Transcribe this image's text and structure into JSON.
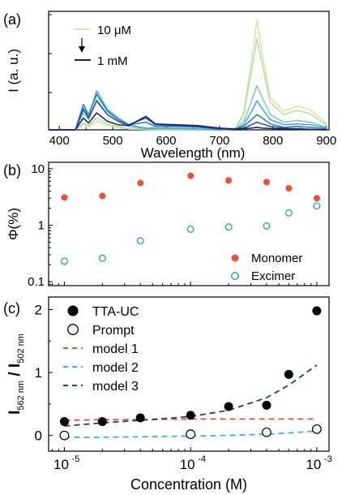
{
  "chart_data": [
    {
      "panel": "(a)",
      "type": "line",
      "xlabel": "Wavelength (nm)",
      "ylabel": "I (a. u.)",
      "xlim": [
        380,
        905
      ],
      "x_ticks": [
        "400",
        "500",
        "600",
        "700",
        "800",
        "900"
      ],
      "legend": {
        "position": "top-left",
        "top_label": "10 μM",
        "bottom_label": "1 mM",
        "arrow": "down"
      },
      "grid": false,
      "series": [
        {
          "color": "#cfe8a2",
          "values": [
            [
              380,
              0
            ],
            [
              430,
              0
            ],
            [
              445,
              6
            ],
            [
              455,
              4
            ],
            [
              470,
              10
            ],
            [
              490,
              5
            ],
            [
              510,
              3
            ],
            [
              530,
              1
            ],
            [
              600,
              0
            ],
            [
              700,
              0
            ],
            [
              730,
              2
            ],
            [
              745,
              20
            ],
            [
              760,
              82
            ],
            [
              770,
              130
            ],
            [
              780,
              90
            ],
            [
              795,
              38
            ],
            [
              820,
              22
            ],
            [
              845,
              28
            ],
            [
              870,
              24
            ],
            [
              900,
              8
            ]
          ]
        },
        {
          "color": "#b5dd9c",
          "values": [
            [
              380,
              0
            ],
            [
              430,
              0
            ],
            [
              445,
              8
            ],
            [
              455,
              5
            ],
            [
              470,
              14
            ],
            [
              490,
              7
            ],
            [
              510,
              4
            ],
            [
              530,
              1
            ],
            [
              600,
              0
            ],
            [
              700,
              0
            ],
            [
              730,
              2
            ],
            [
              745,
              18
            ],
            [
              760,
              70
            ],
            [
              770,
              108
            ],
            [
              780,
              78
            ],
            [
              795,
              32
            ],
            [
              820,
              18
            ],
            [
              845,
              23
            ],
            [
              870,
              19
            ],
            [
              900,
              6
            ]
          ]
        },
        {
          "color": "#7fc8b8",
          "values": [
            [
              380,
              0
            ],
            [
              430,
              0
            ],
            [
              445,
              20
            ],
            [
              455,
              12
            ],
            [
              470,
              36
            ],
            [
              490,
              18
            ],
            [
              510,
              10
            ],
            [
              530,
              4
            ],
            [
              560,
              1
            ],
            [
              600,
              1
            ],
            [
              700,
              0
            ],
            [
              730,
              1
            ],
            [
              745,
              10
            ],
            [
              760,
              34
            ],
            [
              770,
              52
            ],
            [
              780,
              38
            ],
            [
              795,
              18
            ],
            [
              820,
              9
            ],
            [
              845,
              11
            ],
            [
              870,
              9
            ],
            [
              900,
              3
            ]
          ]
        },
        {
          "color": "#3fa9c9",
          "values": [
            [
              380,
              0
            ],
            [
              430,
              0
            ],
            [
              445,
              26
            ],
            [
              455,
              16
            ],
            [
              470,
              46
            ],
            [
              490,
              24
            ],
            [
              510,
              14
            ],
            [
              530,
              6
            ],
            [
              560,
              2
            ],
            [
              620,
              2
            ],
            [
              700,
              0
            ],
            [
              730,
              1
            ],
            [
              745,
              6
            ],
            [
              760,
              22
            ],
            [
              770,
              34
            ],
            [
              780,
              25
            ],
            [
              795,
              12
            ],
            [
              820,
              6
            ],
            [
              845,
              7
            ],
            [
              870,
              6
            ],
            [
              900,
              2
            ]
          ]
        },
        {
          "color": "#2a7bb0",
          "values": [
            [
              380,
              0
            ],
            [
              430,
              0
            ],
            [
              445,
              30
            ],
            [
              455,
              18
            ],
            [
              470,
              42
            ],
            [
              490,
              22
            ],
            [
              510,
              12
            ],
            [
              530,
              6
            ],
            [
              562,
              9
            ],
            [
              580,
              4
            ],
            [
              620,
              4
            ],
            [
              660,
              3
            ],
            [
              700,
              1
            ],
            [
              730,
              1
            ],
            [
              745,
              4
            ],
            [
              760,
              12
            ],
            [
              770,
              18
            ],
            [
              780,
              14
            ],
            [
              795,
              7
            ],
            [
              820,
              3
            ],
            [
              845,
              4
            ],
            [
              870,
              3
            ],
            [
              900,
              1
            ]
          ]
        },
        {
          "color": "#25519b",
          "values": [
            [
              380,
              0
            ],
            [
              430,
              0
            ],
            [
              445,
              24
            ],
            [
              455,
              14
            ],
            [
              470,
              34
            ],
            [
              490,
              18
            ],
            [
              510,
              10
            ],
            [
              530,
              6
            ],
            [
              562,
              14
            ],
            [
              580,
              6
            ],
            [
              620,
              5
            ],
            [
              660,
              4
            ],
            [
              700,
              1
            ],
            [
              730,
              1
            ],
            [
              745,
              2
            ],
            [
              760,
              6
            ],
            [
              770,
              9
            ],
            [
              780,
              7
            ],
            [
              795,
              4
            ],
            [
              820,
              2
            ],
            [
              900,
              0
            ]
          ]
        },
        {
          "color": "#151d6e",
          "values": [
            [
              380,
              0
            ],
            [
              430,
              0
            ],
            [
              445,
              14
            ],
            [
              455,
              8
            ],
            [
              470,
              20
            ],
            [
              490,
              10
            ],
            [
              510,
              6
            ],
            [
              530,
              5
            ],
            [
              562,
              16
            ],
            [
              580,
              7
            ],
            [
              620,
              6
            ],
            [
              660,
              5
            ],
            [
              700,
              2
            ],
            [
              730,
              1
            ],
            [
              760,
              2
            ],
            [
              770,
              3
            ],
            [
              780,
              2
            ],
            [
              820,
              1
            ],
            [
              900,
              0
            ]
          ]
        }
      ]
    },
    {
      "panel": "(b)",
      "type": "scatter",
      "ylabel": "Φ(%)",
      "yscale": "log",
      "xscale": "log",
      "xlim": [
        7.5e-06,
        0.00125
      ],
      "ylim": [
        0.085,
        13
      ],
      "y_ticks": [
        "0.1",
        "1",
        "10"
      ],
      "legend": {
        "position": "bottom-right"
      },
      "series": [
        {
          "name": "Monomer",
          "marker": "filled-circle",
          "color": "#e8523a",
          "x": [
            1e-05,
            2e-05,
            4e-05,
            0.0001,
            0.0002,
            0.0004,
            0.0006,
            0.001
          ],
          "y": [
            3.1,
            3.3,
            5.6,
            7.5,
            6.2,
            5.8,
            4.5,
            3.0
          ]
        },
        {
          "name": "Excimer",
          "marker": "open-circle",
          "color": "#24a89b",
          "x": [
            1e-05,
            2e-05,
            4e-05,
            0.0001,
            0.0002,
            0.0004,
            0.0006,
            0.001
          ],
          "y": [
            0.23,
            0.26,
            0.53,
            0.85,
            0.93,
            0.97,
            1.65,
            2.2
          ]
        }
      ]
    },
    {
      "panel": "(c)",
      "type": "scatter",
      "xlabel": "Concentration (M)",
      "ylabel_main": "I",
      "ylabel_sub1": "562 nm",
      "ylabel_div": " / I",
      "ylabel_sub2": "502 nm",
      "xscale": "log",
      "xlim": [
        7.5e-06,
        0.00125
      ],
      "ylim": [
        -0.25,
        2.2
      ],
      "x_ticks": [
        {
          "value": 1e-05,
          "base": "10",
          "exp": "-5"
        },
        {
          "value": 0.0001,
          "base": "10",
          "exp": "-4"
        },
        {
          "value": 0.001,
          "base": "10",
          "exp": "-3"
        }
      ],
      "y_ticks": [
        "0",
        "1",
        "2"
      ],
      "legend": {
        "position": "top-left"
      },
      "series": [
        {
          "name": "TTA-UC",
          "marker": "filled-circle",
          "color": "#000000",
          "x": [
            1e-05,
            2e-05,
            4e-05,
            0.0001,
            0.0002,
            0.0004,
            0.0006,
            0.001
          ],
          "y": [
            0.22,
            0.22,
            0.28,
            0.32,
            0.46,
            0.48,
            0.97,
            1.98
          ]
        },
        {
          "name": "Prompt",
          "marker": "open-circle",
          "color": "#000000",
          "x": [
            1e-05,
            0.0001,
            0.0004,
            0.001
          ],
          "y": [
            0.0,
            0.02,
            0.05,
            0.1
          ]
        },
        {
          "name": "model 1",
          "line": "dashed",
          "color": "#e8523a",
          "x": [
            1e-05,
            2e-05,
            4e-05,
            0.0001,
            0.0002,
            0.0004,
            0.0006,
            0.001
          ],
          "y": [
            0.24,
            0.25,
            0.25,
            0.26,
            0.26,
            0.26,
            0.26,
            0.26
          ]
        },
        {
          "name": "model 2",
          "line": "dashed",
          "color": "#3fb2d9",
          "x": [
            1e-05,
            2e-05,
            4e-05,
            0.0001,
            0.0002,
            0.0004,
            0.0006,
            0.001
          ],
          "y": [
            -0.03,
            -0.03,
            -0.02,
            -0.01,
            0.0,
            0.02,
            0.04,
            0.07
          ]
        },
        {
          "name": "model 3",
          "line": "dashed",
          "color": "#243f73",
          "x": [
            1e-05,
            2e-05,
            4e-05,
            0.0001,
            0.0002,
            0.0004,
            0.0006,
            0.001
          ],
          "y": [
            0.15,
            0.2,
            0.24,
            0.3,
            0.4,
            0.6,
            0.8,
            1.12
          ]
        }
      ]
    }
  ]
}
